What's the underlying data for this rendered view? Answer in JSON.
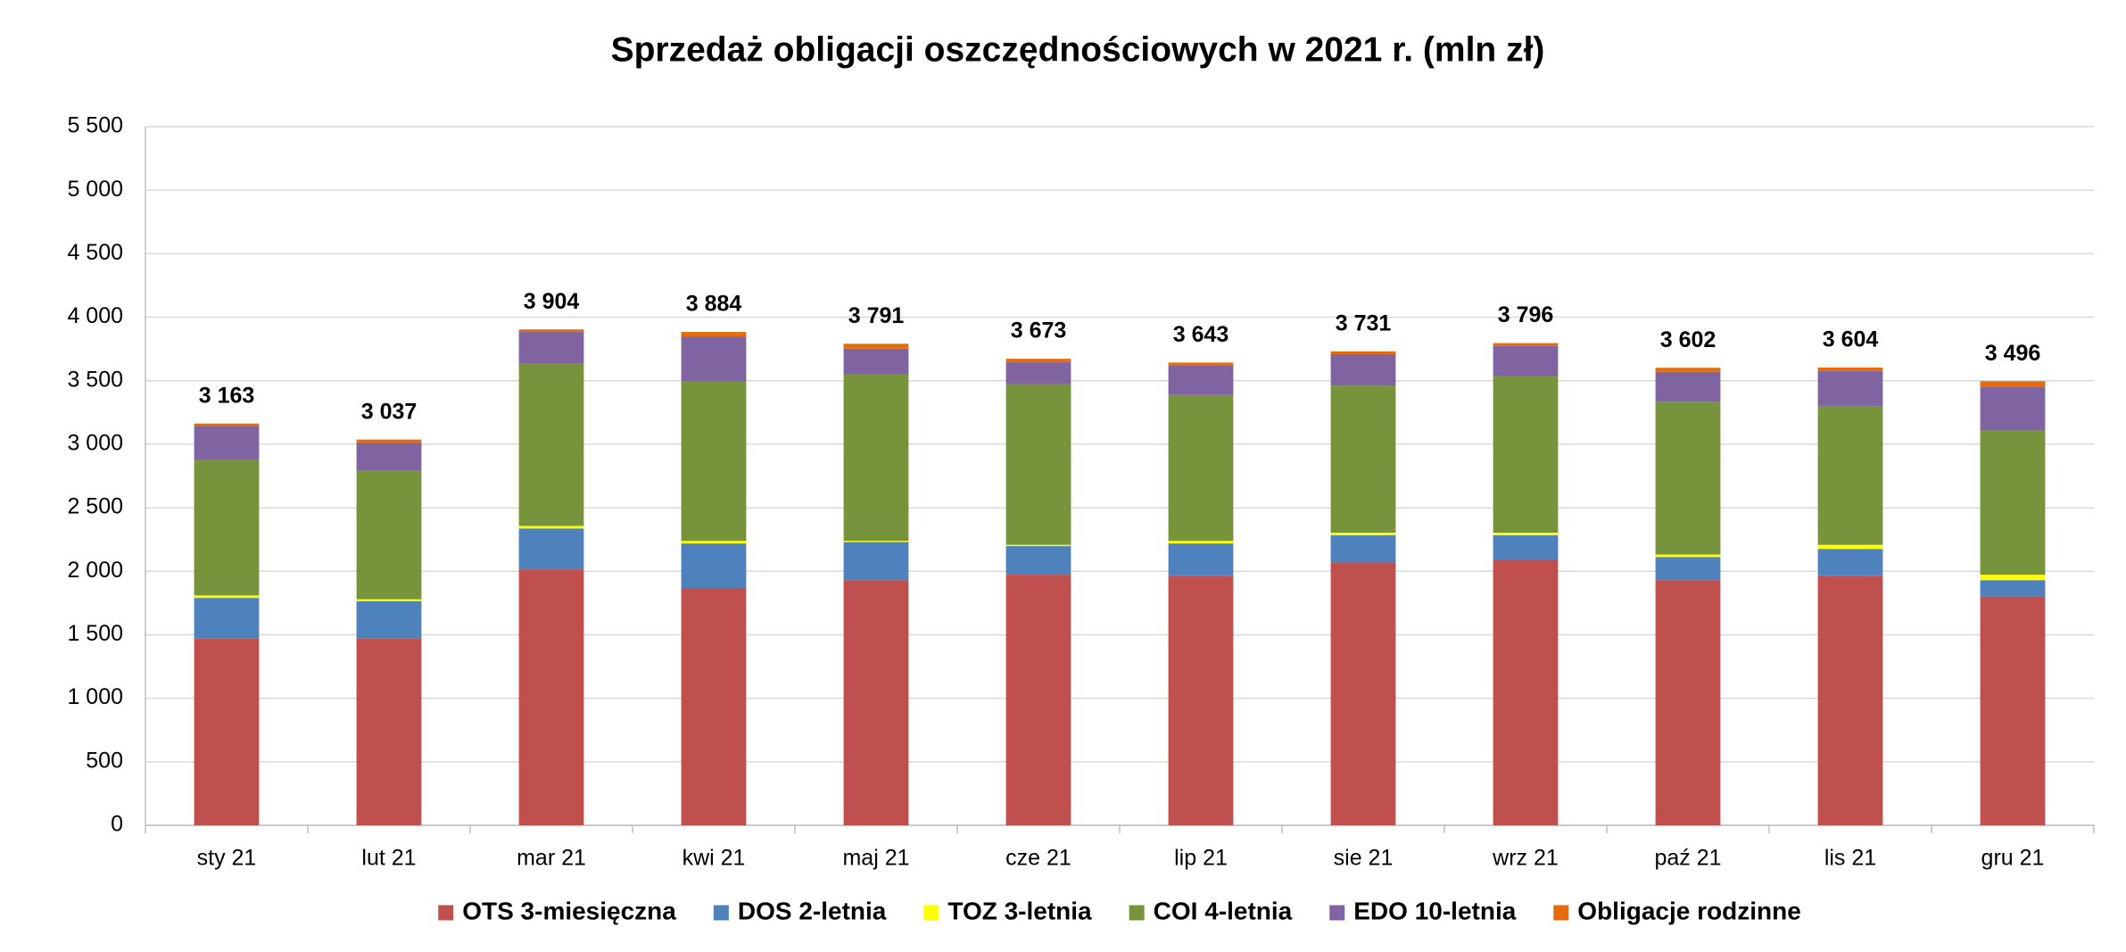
{
  "chart_data": {
    "type": "stacked-bar",
    "title": "Sprzedaż obligacji oszczędnościowych w 2021 r. (mln zł)",
    "categories": [
      "sty 21",
      "lut 21",
      "mar 21",
      "kwi 21",
      "maj 21",
      "cze 21",
      "lip 21",
      "sie 21",
      "wrz 21",
      "paź 21",
      "lis 21",
      "gru 21"
    ],
    "series": [
      {
        "name": "OTS 3-miesięczna",
        "color": "#c0504d",
        "values": [
          1470,
          1470,
          2015,
          1865,
          1930,
          1973,
          1962,
          2069,
          2090,
          1930,
          1962,
          1801
        ]
      },
      {
        "name": "DOS 2-letnia",
        "color": "#4f81bd",
        "values": [
          320,
          295,
          322,
          354,
          300,
          225,
          257,
          215,
          194,
          182,
          214,
          129
        ]
      },
      {
        "name": "TOZ 3-letnia",
        "color": "#ffff00",
        "values": [
          20,
          15,
          20,
          20,
          10,
          10,
          20,
          20,
          20,
          20,
          32,
          43
        ]
      },
      {
        "name": "COI 4-letnia",
        "color": "#77933c",
        "values": [
          1070,
          1010,
          1277,
          1256,
          1308,
          1265,
          1149,
          1158,
          1233,
          1202,
          1094,
          1136
        ]
      },
      {
        "name": "EDO 10-letnia",
        "color": "#8064a2",
        "values": [
          260,
          220,
          250,
          354,
          204,
          172,
          235,
          247,
          237,
          236,
          278,
          343
        ]
      },
      {
        "name": "Obligacje rodzinne",
        "color": "#e46c0a",
        "values": [
          23,
          27,
          20,
          35,
          39,
          28,
          20,
          22,
          22,
          32,
          24,
          44
        ]
      }
    ],
    "totals": [
      3163,
      3037,
      3904,
      3884,
      3791,
      3673,
      3643,
      3731,
      3796,
      3602,
      3604,
      3496
    ],
    "value_labels": [
      "3 163",
      "3 037",
      "3 904",
      "3 884",
      "3 791",
      "3 673",
      "3 643",
      "3 731",
      "3 796",
      "3 602",
      "3 604",
      "3 496"
    ],
    "ylim": [
      0,
      5500
    ],
    "yticks": [
      0,
      500,
      {
        "value": 1000,
        "label": "1 000"
      },
      {
        "value": 1500,
        "label": "1 500"
      },
      {
        "value": 2000,
        "label": "2 000"
      },
      {
        "value": 2500,
        "label": "2 500"
      },
      {
        "value": 3000,
        "label": "3 000"
      },
      {
        "value": 3500,
        "label": "3 500"
      },
      {
        "value": 4000,
        "label": "4 000"
      },
      {
        "value": 4500,
        "label": "4 500"
      },
      {
        "value": 5000,
        "label": "5 000"
      },
      {
        "value": 5500,
        "label": "5 500"
      }
    ],
    "grid": true,
    "legend": "bottom"
  }
}
